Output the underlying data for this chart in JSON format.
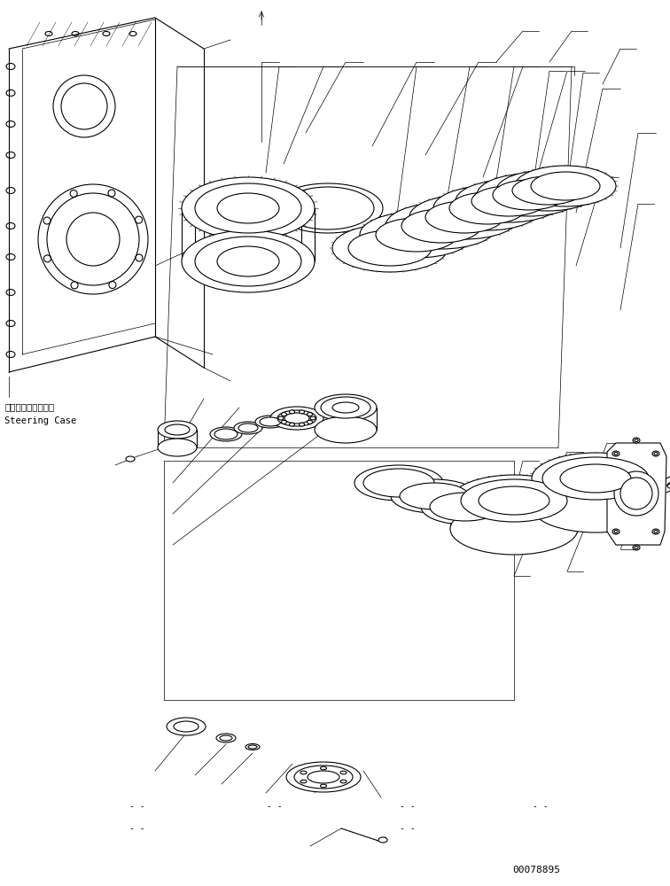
{
  "background_color": "#ffffff",
  "line_color": "#000000",
  "text_color": "#000000",
  "part_number": "00078895",
  "label_steering_case_jp": "ステアリングケース",
  "label_steering_case_en": "Steering Case",
  "fig_width": 7.56,
  "fig_height": 10.0,
  "dpi": 100,
  "lw_main": 0.8,
  "lw_thin": 0.5,
  "lw_thick": 1.0
}
